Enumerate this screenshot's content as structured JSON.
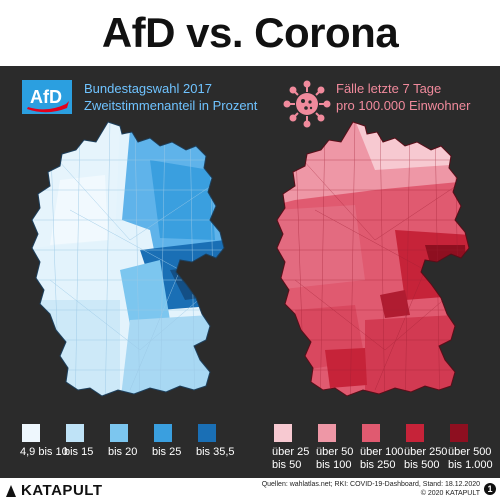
{
  "title": "AfD vs. Corona",
  "left_panel": {
    "logo_text": "AfD",
    "line1": "Bundestagswahl 2017",
    "line2": "Zweitstimmenanteil in Prozent",
    "legend": [
      {
        "label1": "4,9 bis 10",
        "label2": "",
        "color": "#eef7fd"
      },
      {
        "label1": "bis 15",
        "label2": "",
        "color": "#bfe3f7"
      },
      {
        "label1": "bis 20",
        "label2": "",
        "color": "#7cc6ef"
      },
      {
        "label1": "bis 25",
        "label2": "",
        "color": "#3a9fdf"
      },
      {
        "label1": "bis 35,5",
        "label2": "",
        "color": "#1a6fb5"
      }
    ]
  },
  "right_panel": {
    "line1": "Fälle letzte 7 Tage",
    "line2": "pro 100.000 Einwohner",
    "legend": [
      {
        "label1": "über 25",
        "label2": "bis 50",
        "color": "#f7c9d1"
      },
      {
        "label1": "über 50",
        "label2": "bis 100",
        "color": "#ee97a6"
      },
      {
        "label1": "über 100",
        "label2": "bis 250",
        "color": "#e05a70"
      },
      {
        "label1": "über 250",
        "label2": "bis 500",
        "color": "#c62339"
      },
      {
        "label1": "über 500",
        "label2": "bis 1.000",
        "color": "#8e0f20"
      }
    ]
  },
  "footer": {
    "brand": "KATAPULT",
    "source": "Quellen: wahlatlas.net; RKI: COVID-19-Dashboard, Stand: 18.12.2020",
    "copyright": "© 2020 KATAPULT",
    "badge": "1"
  },
  "colors": {
    "background": "#2b2b2b",
    "afd_blue": "#2b9fe0",
    "afd_red": "#e3001b",
    "corona_red": "#e05a70"
  }
}
